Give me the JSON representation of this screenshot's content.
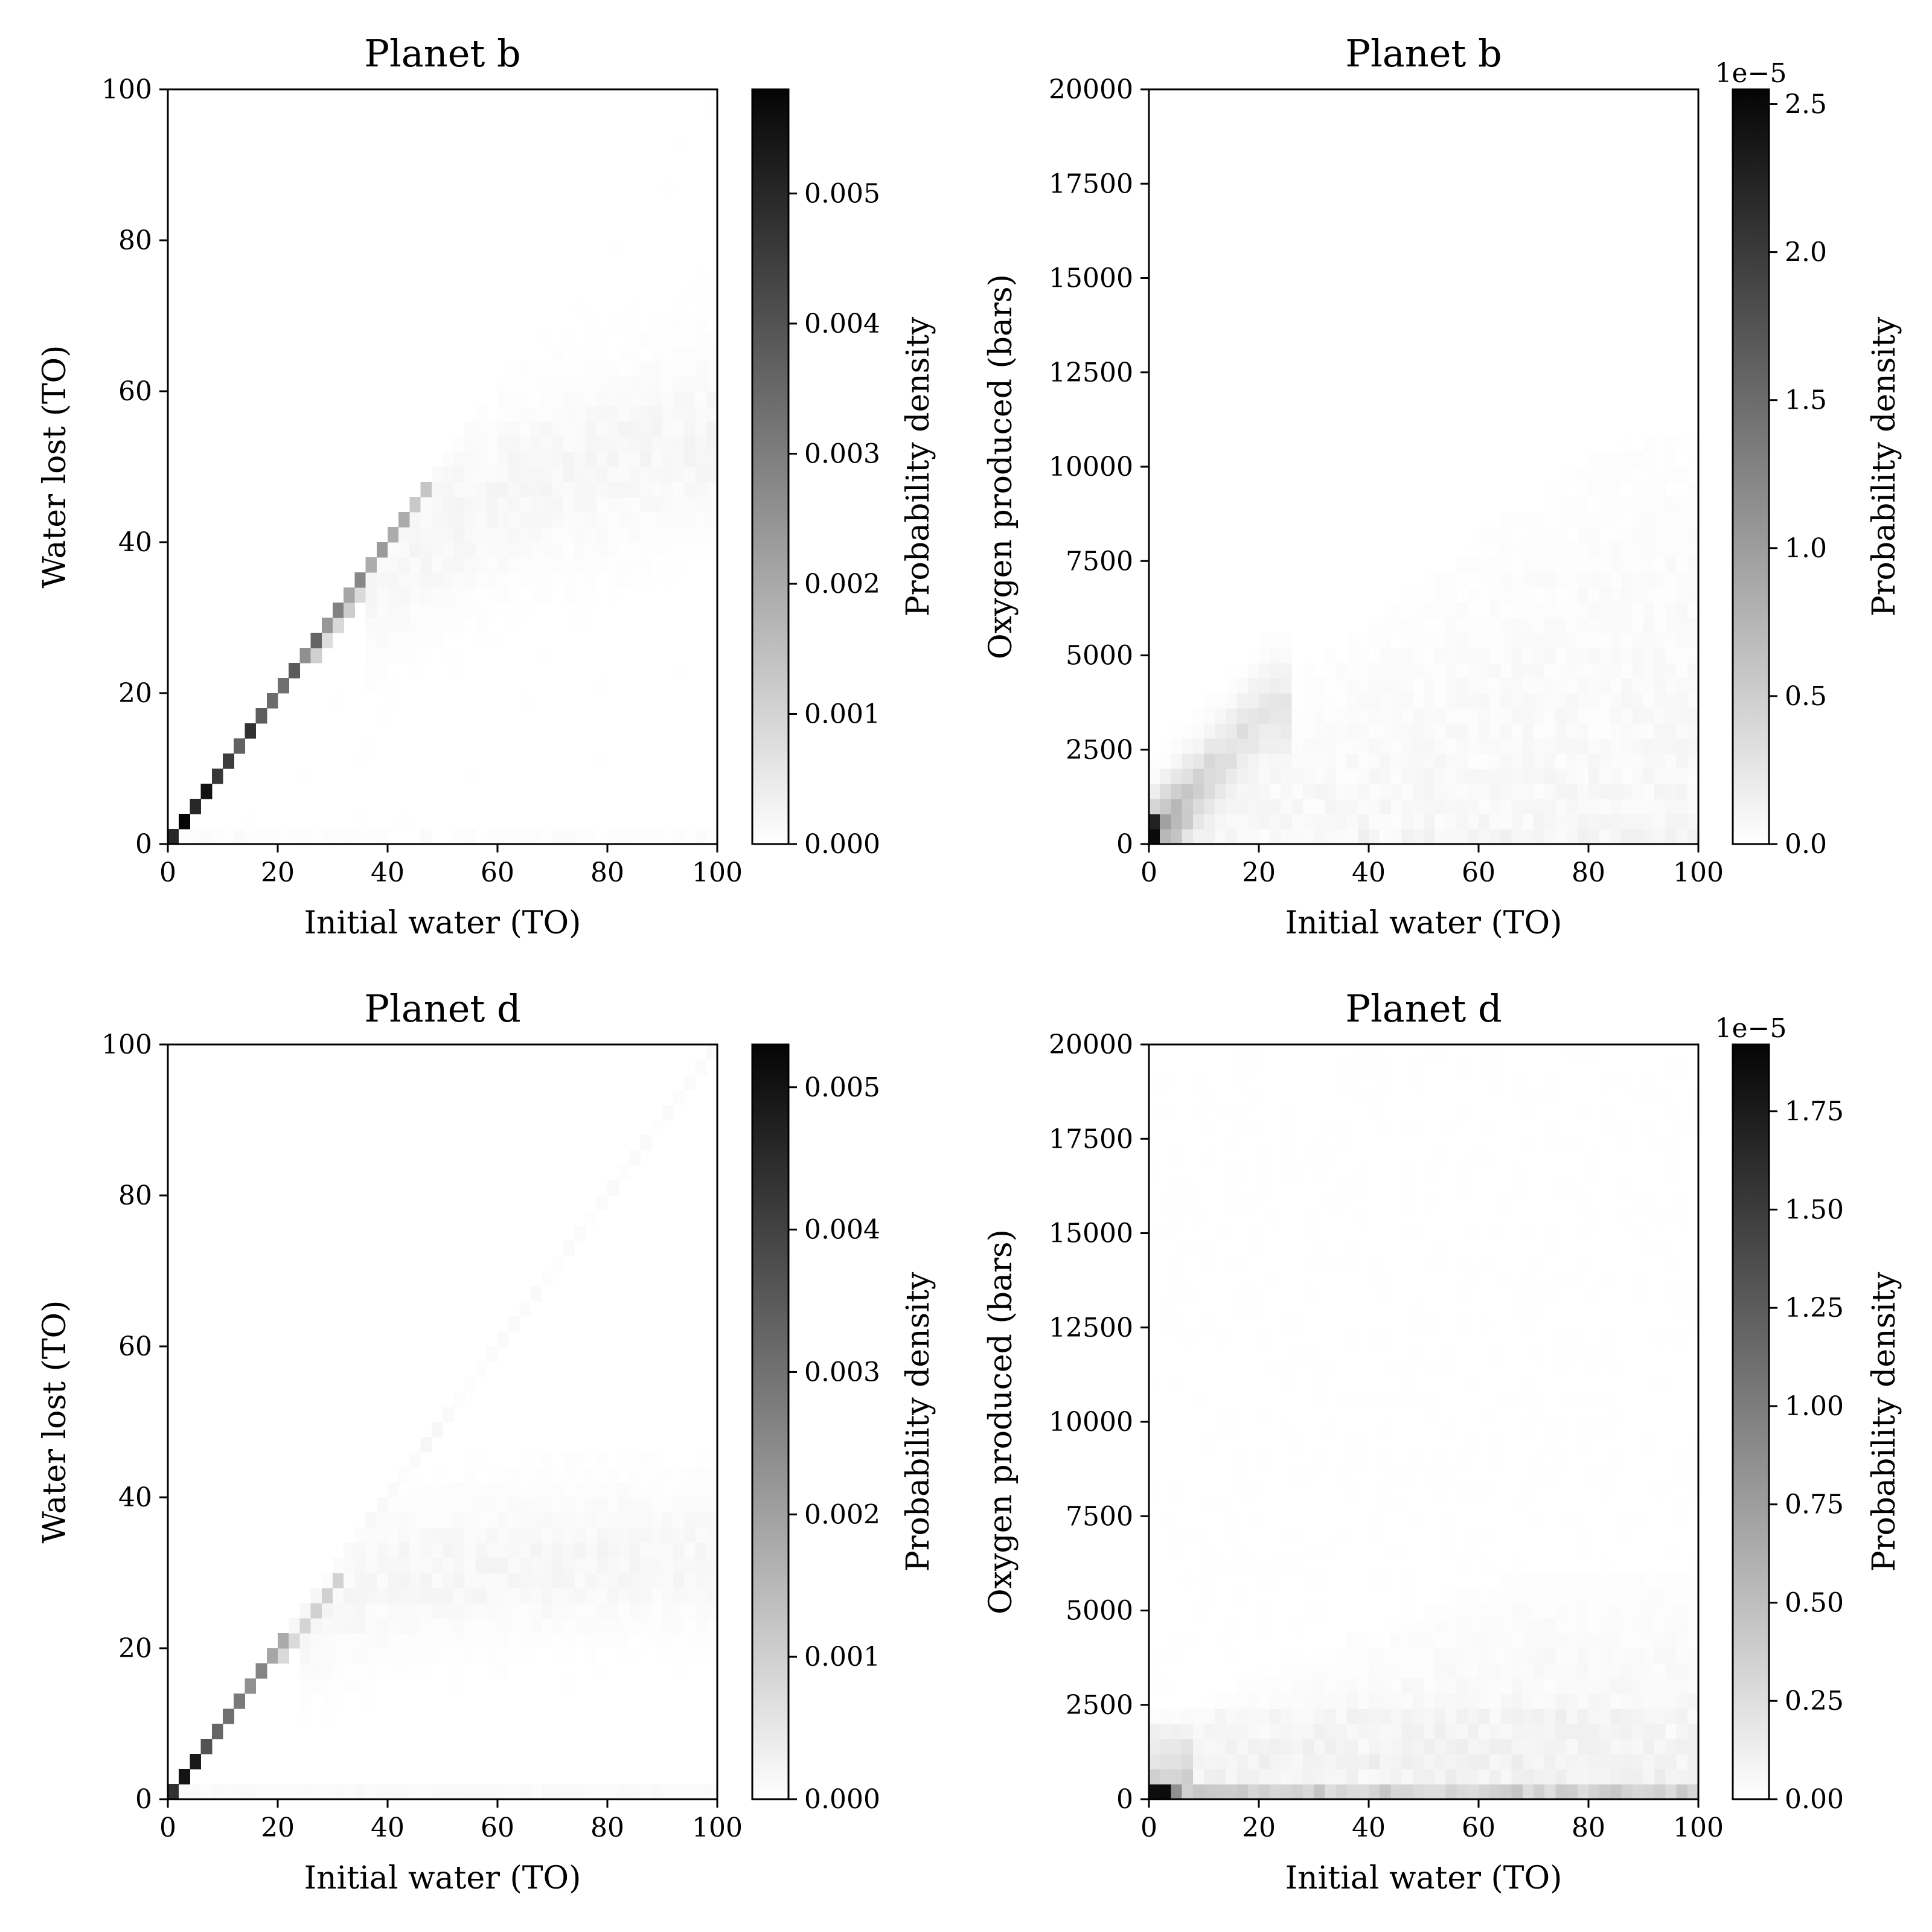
{
  "chart_data": [
    {
      "type": "heatmap",
      "title": "Planet b",
      "xlabel": "Initial water (TO)",
      "ylabel": "Water lost (TO)",
      "colorbar_label": "Probability density",
      "colormap": "Greys",
      "xlim": [
        0,
        100
      ],
      "ylim": [
        0,
        100
      ],
      "xticks": [
        "0",
        "20",
        "40",
        "60",
        "80",
        "100"
      ],
      "yticks": [
        "0",
        "20",
        "40",
        "60",
        "80",
        "100"
      ],
      "xtick_values": [
        0,
        20,
        40,
        60,
        80,
        100
      ],
      "ytick_values": [
        0,
        20,
        40,
        60,
        80,
        100
      ],
      "cbar_range": [
        0,
        0.0058
      ],
      "cbar_ticks": [
        "0.000",
        "0.001",
        "0.002",
        "0.003",
        "0.004",
        "0.005"
      ],
      "cbar_tick_values": [
        0,
        0.001,
        0.002,
        0.003,
        0.004,
        0.005
      ],
      "cbar_offset": "",
      "bins": [
        50,
        50
      ],
      "structure": {
        "diagonal_end": 48,
        "diagonal_peak": 0.0057,
        "diagonal_min": 0.0012,
        "plateau_at_100": 54,
        "band_width": 7,
        "band_density": 0.00018,
        "floor_density": 4e-05,
        "bottom_row_density": 8e-05
      }
    },
    {
      "type": "heatmap",
      "title": "Planet b",
      "xlabel": "Initial water (TO)",
      "ylabel": "Oxygen produced (bars)",
      "colorbar_label": "Probability density",
      "colormap": "Greys",
      "xlim": [
        0,
        100
      ],
      "ylim": [
        0,
        20000
      ],
      "xticks": [
        "0",
        "20",
        "40",
        "60",
        "80",
        "100"
      ],
      "yticks": [
        "0",
        "2500",
        "5000",
        "7500",
        "10000",
        "12500",
        "15000",
        "17500",
        "20000"
      ],
      "xtick_values": [
        0,
        20,
        40,
        60,
        80,
        100
      ],
      "ytick_values": [
        0,
        2500,
        5000,
        7500,
        10000,
        12500,
        15000,
        17500,
        20000
      ],
      "cbar_range": [
        0,
        2.55
      ],
      "cbar_ticks": [
        "0.0",
        "0.5",
        "1.0",
        "1.5",
        "2.0",
        "2.5"
      ],
      "cbar_tick_values": [
        0,
        0.5,
        1.0,
        1.5,
        2.0,
        2.5
      ],
      "cbar_offset": "1e−5",
      "bins": [
        50,
        50
      ],
      "structure": {
        "peak_x": [
          0,
          2
        ],
        "peak_y": [
          0,
          800
        ],
        "peak_value": 2.5,
        "ridge_end_x": 22,
        "ridge_end_y": 4000,
        "diffuse_top": 11000,
        "diffuse_density": 0.1
      }
    },
    {
      "type": "heatmap",
      "title": "Planet d",
      "xlabel": "Initial water (TO)",
      "ylabel": "Water lost (TO)",
      "colorbar_label": "Probability density",
      "colormap": "Greys",
      "xlim": [
        0,
        100
      ],
      "ylim": [
        0,
        100
      ],
      "xticks": [
        "0",
        "20",
        "40",
        "60",
        "80",
        "100"
      ],
      "yticks": [
        "0",
        "20",
        "40",
        "60",
        "80",
        "100"
      ],
      "xtick_values": [
        0,
        20,
        40,
        60,
        80,
        100
      ],
      "ytick_values": [
        0,
        20,
        40,
        60,
        80,
        100
      ],
      "cbar_range": [
        0,
        0.0053
      ],
      "cbar_ticks": [
        "0.000",
        "0.001",
        "0.002",
        "0.003",
        "0.004",
        "0.005"
      ],
      "cbar_tick_values": [
        0,
        0.001,
        0.002,
        0.003,
        0.004,
        0.005
      ],
      "cbar_offset": "",
      "bins": [
        50,
        50
      ],
      "structure": {
        "diagonal_end": 22,
        "diagonal_peak": 0.0052,
        "diagonal_min": 0.0015,
        "plateau_at_100": 32,
        "band_width": 6,
        "band_density": 0.00016,
        "faint_diagonal_density": 8e-05,
        "floor_density": 3e-05,
        "bottom_row_density": 0.0001
      }
    },
    {
      "type": "heatmap",
      "title": "Planet d",
      "xlabel": "Initial water (TO)",
      "ylabel": "Oxygen produced (bars)",
      "colorbar_label": "Probability density",
      "colormap": "Greys",
      "xlim": [
        0,
        100
      ],
      "ylim": [
        0,
        20000
      ],
      "xticks": [
        "0",
        "20",
        "40",
        "60",
        "80",
        "100"
      ],
      "yticks": [
        "0",
        "2500",
        "5000",
        "7500",
        "10000",
        "12500",
        "15000",
        "17500",
        "20000"
      ],
      "xtick_values": [
        0,
        20,
        40,
        60,
        80,
        100
      ],
      "ytick_values": [
        0,
        2500,
        5000,
        7500,
        10000,
        12500,
        15000,
        17500,
        20000
      ],
      "cbar_range": [
        0,
        1.92
      ],
      "cbar_ticks": [
        "0.00",
        "0.25",
        "0.50",
        "0.75",
        "1.00",
        "1.25",
        "1.50",
        "1.75"
      ],
      "cbar_tick_values": [
        0,
        0.25,
        0.5,
        0.75,
        1.0,
        1.25,
        1.5,
        1.75
      ],
      "cbar_offset": "1e−5",
      "bins": [
        50,
        50
      ],
      "structure": {
        "peak_x": [
          0,
          4
        ],
        "peak_y": [
          0,
          400
        ],
        "peak_value": 1.9,
        "bottom_row_value": 0.45,
        "low_band_top": 2500,
        "diffuse_top": 6000,
        "diffuse_density": 0.08
      }
    }
  ]
}
